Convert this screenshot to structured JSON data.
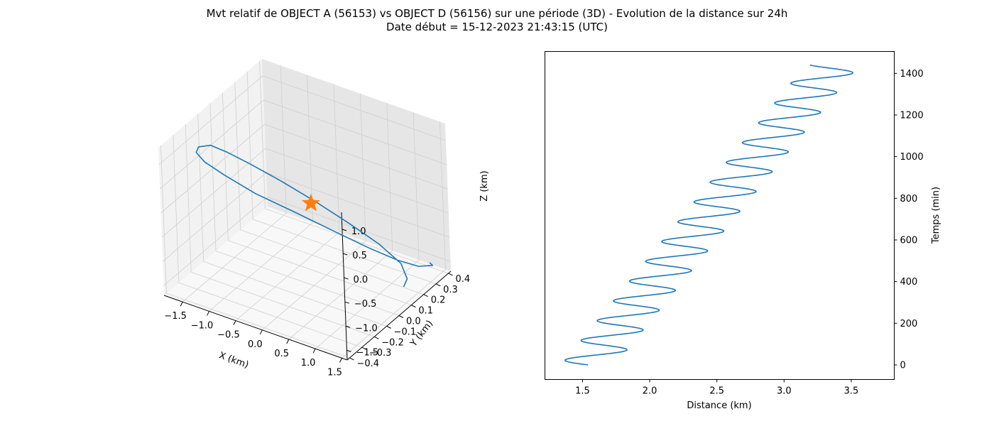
{
  "figure": {
    "title_line1": "Mvt relatif de OBJECT A (56153) vs OBJECT D (56156) sur une période (3D) - Evolution de la distance sur 24h",
    "title_line2": "Date début = 15-12-2023 21:43:15 (UTC)"
  },
  "colors": {
    "series": "#1f77b4",
    "marker": "#ff7f0e",
    "pane_left": "#f2f2f2",
    "pane_right": "#e6e6e6",
    "pane_floor": "#f8f8f8",
    "grid": "#cfcfcf"
  },
  "chart_data": [
    {
      "type": "line3d",
      "title": "",
      "xlabel": "X (km)",
      "ylabel": "Y (km)",
      "zlabel": "Z (km)",
      "xticks": [
        -1.5,
        -1.0,
        -0.5,
        0.0,
        0.5,
        1.0,
        1.5
      ],
      "xtick_labels": [
        "−1.5",
        "−1.0",
        "−0.5",
        "0.0",
        "0.5",
        "1.0",
        "1.5"
      ],
      "yticks": [
        -0.4,
        -0.3,
        -0.2,
        -0.1,
        0.0,
        0.1,
        0.2,
        0.3,
        0.4
      ],
      "ytick_labels": [
        "−0.4",
        "−0.3",
        "−0.2",
        "−0.1",
        "0.0",
        "0.1",
        "0.2",
        "0.3",
        "0.4"
      ],
      "zticks": [
        -1.5,
        -1.0,
        -0.5,
        0.0,
        0.5,
        1.0
      ],
      "ztick_labels": [
        "−1.5",
        "−1.0",
        "−0.5",
        "0.0",
        "0.5",
        "1.0"
      ],
      "xlim": [
        -1.85,
        1.6
      ],
      "ylim": [
        -0.42,
        0.42
      ],
      "zlim": [
        -1.7,
        1.35
      ],
      "markers": [
        {
          "label": "OBJECT A",
          "x": 0,
          "y": 0,
          "z": 0,
          "marker": "star"
        }
      ],
      "series": [
        {
          "relative_orbit": {
            "x": [
              1.37,
              1.15,
              0.8,
              0.3,
              -0.25,
              -0.75,
              -1.15,
              -1.42,
              -1.55,
              -1.58,
              -1.52,
              -1.35,
              -1.05,
              -0.65,
              -0.15,
              0.4,
              0.85,
              1.2,
              1.42,
              1.52,
              1.5,
              1.3
            ],
            "y": [
              0.14,
              0.26,
              0.36,
              0.4,
              0.39,
              0.33,
              0.24,
              0.12,
              0.0,
              -0.12,
              -0.24,
              -0.33,
              -0.39,
              -0.4,
              -0.37,
              -0.29,
              -0.18,
              -0.05,
              0.08,
              0.2,
              0.32,
              0.38
            ],
            "z": [
              -1.5,
              -1.68,
              -1.72,
              -1.6,
              -1.35,
              -0.95,
              -0.5,
              0.0,
              0.45,
              0.85,
              1.1,
              1.25,
              1.3,
              1.2,
              0.95,
              0.6,
              0.15,
              -0.35,
              -0.8,
              -1.15,
              -1.4,
              -1.55
            ]
          }
        }
      ]
    },
    {
      "type": "line",
      "title": "",
      "xlabel": "Distance (km)",
      "ylabel": "Temps (min)",
      "xlim": [
        1.22,
        3.82
      ],
      "ylim": [
        -70,
        1505
      ],
      "xticks": [
        1.5,
        2.0,
        2.5,
        3.0,
        3.5
      ],
      "xtick_labels": [
        "1.5",
        "2.0",
        "2.5",
        "3.0",
        "3.5"
      ],
      "yticks": [
        0,
        200,
        400,
        600,
        800,
        1000,
        1200,
        1400
      ],
      "ytick_labels": [
        "0",
        "200",
        "400",
        "600",
        "800",
        "1000",
        "1200",
        "1400"
      ],
      "y_axis_side": "right",
      "series": [
        {
          "distance_time": {
            "pattern": "oscillating distance with linear drift",
            "start_time": 0,
            "end_time": 1440,
            "time_step": 2,
            "oscillation_period": 95,
            "oscillation_amplitude": 0.2,
            "drift_start": 1.54,
            "drift_end": 3.36
          }
        }
      ]
    }
  ]
}
